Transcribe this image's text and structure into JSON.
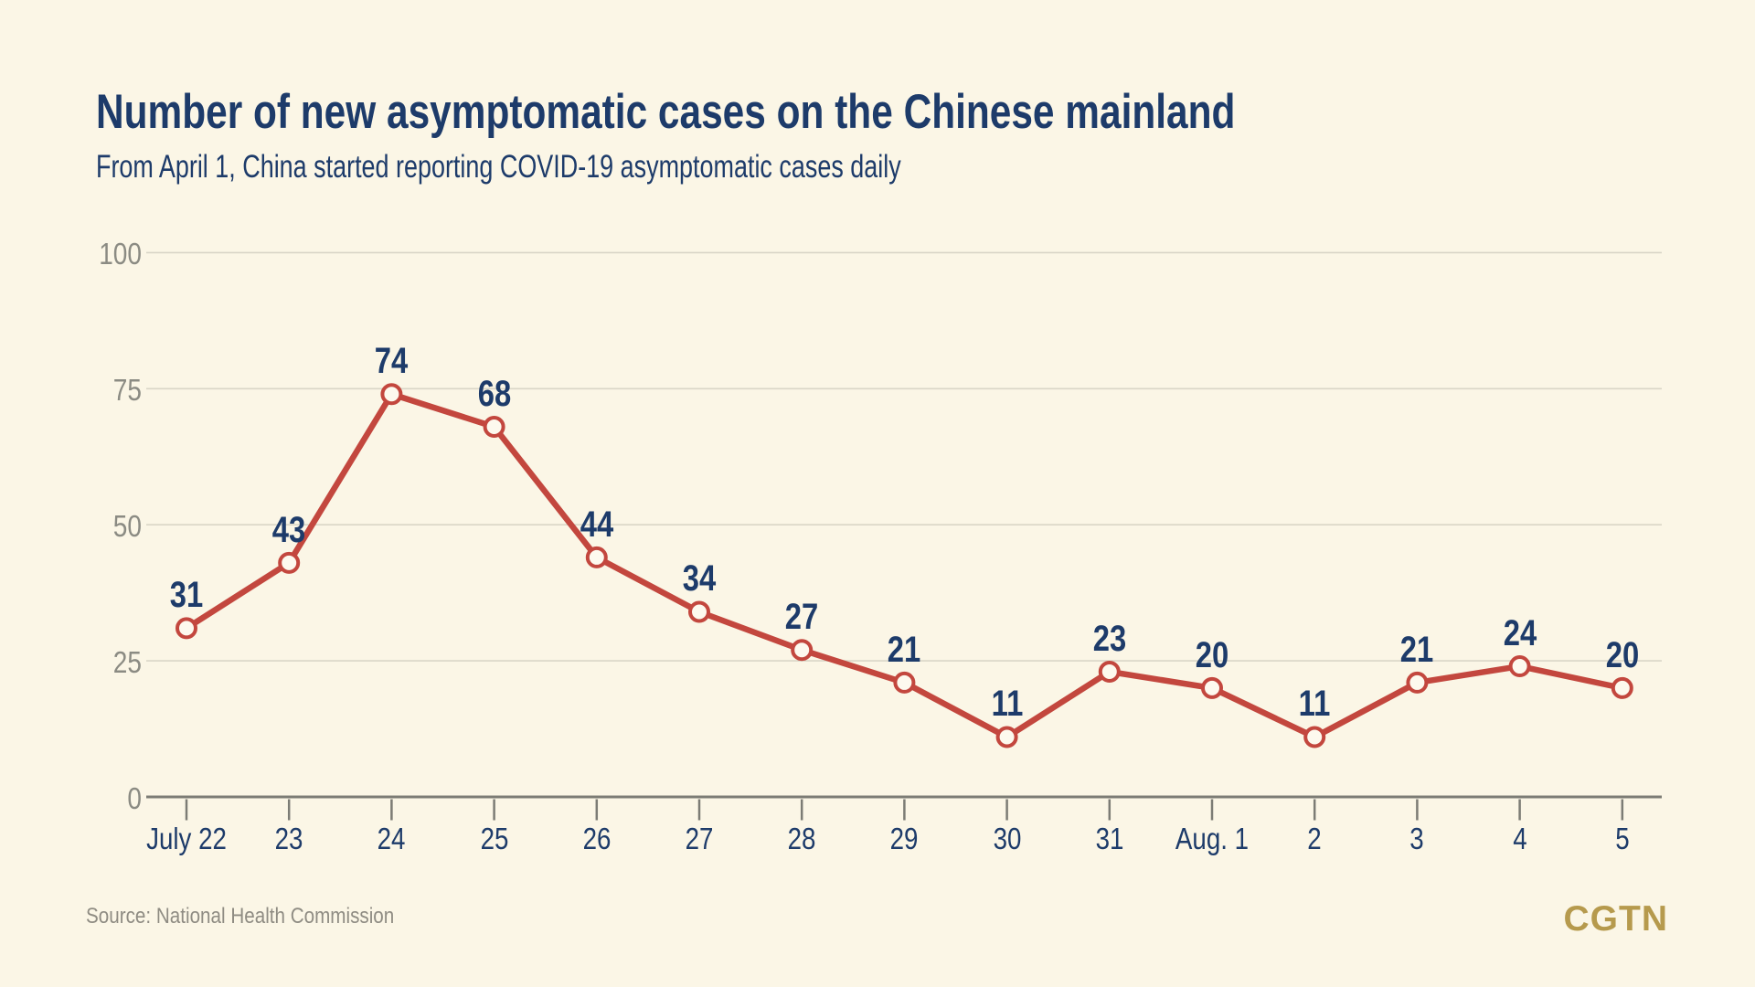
{
  "page": {
    "background_color": "#fbf6e6"
  },
  "chart_data": {
    "type": "line",
    "title": "Number of new asymptomatic cases on the Chinese mainland",
    "subtitle": "From April 1, China started reporting COVID-19 asymptomatic cases daily",
    "categories": [
      "July 22",
      "23",
      "24",
      "25",
      "26",
      "27",
      "28",
      "29",
      "30",
      "31",
      "Aug. 1",
      "2",
      "3",
      "4",
      "5"
    ],
    "values": [
      31,
      43,
      74,
      68,
      44,
      34,
      27,
      21,
      11,
      23,
      20,
      11,
      21,
      24,
      20
    ],
    "xlabel": "",
    "ylabel": "",
    "ylim": [
      0,
      100
    ],
    "y_ticks": [
      0,
      25,
      50,
      75,
      100
    ],
    "grid": "horizontal",
    "legend_position": "none",
    "data_labels_shown": true,
    "colors": {
      "line": "#c3473e",
      "marker_fill": "#fdf9ee",
      "marker_stroke": "#c3473e",
      "data_label": "#1d3b6a",
      "x_tick_label": "#1d3b6a",
      "y_tick_label": "#8b8b83",
      "gridline": "#d9d5c7",
      "axis": "#7c7c75",
      "title": "#1d3b6a"
    }
  },
  "footer": {
    "source": "Source: National Health Commission",
    "logo": "CGTN",
    "logo_color": "#b69a4d"
  }
}
